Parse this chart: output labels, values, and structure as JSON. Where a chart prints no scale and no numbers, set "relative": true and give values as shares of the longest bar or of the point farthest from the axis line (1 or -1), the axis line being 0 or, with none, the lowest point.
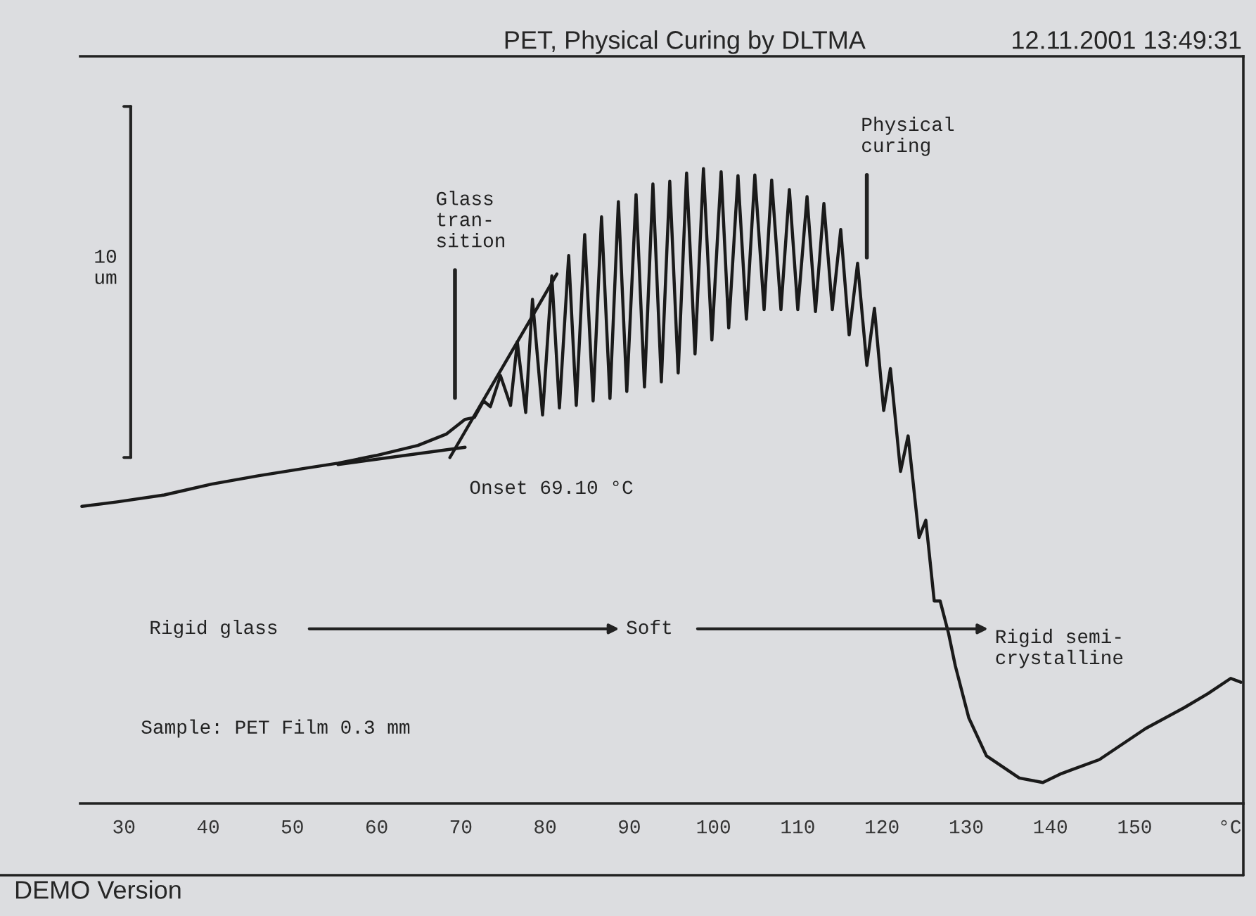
{
  "chart_data": {
    "type": "line",
    "title": "PET, Physical Curing by DLTMA",
    "relative": true,
    "xlim": [
      24.8,
      162.9
    ],
    "xticks": [
      30,
      40,
      50,
      60,
      70,
      80,
      90,
      100,
      110,
      120,
      130,
      140,
      150,
      {
        "value": 161.3,
        "label": "°C"
      }
    ],
    "grid": false,
    "legend": false,
    "marker": "none",
    "line_style": "solid",
    "series": [
      {
        "color": "#1a1a1a",
        "x": [
          25.0,
          29.2,
          34.8,
          40.4,
          45.9,
          51.5,
          55.4,
          59.9,
          64.9,
          68.3,
          70.5,
          71.6,
          72.7,
          73.5,
          74.7,
          75.9,
          76.7,
          77.7,
          78.5,
          79.7,
          80.8,
          81.7,
          82.8,
          83.7,
          84.7,
          85.7,
          86.7,
          87.7,
          88.7,
          89.7,
          90.8,
          91.8,
          92.8,
          93.8,
          94.8,
          95.8,
          96.8,
          97.8,
          98.8,
          99.8,
          100.9,
          101.8,
          102.9,
          103.9,
          104.9,
          106.0,
          106.9,
          108.0,
          109.0,
          110.0,
          111.1,
          112.1,
          113.1,
          114.1,
          115.1,
          116.1,
          117.1,
          118.2,
          119.1,
          120.2,
          121.0,
          122.2,
          123.1,
          124.4,
          125.2,
          126.2,
          126.9,
          127.9,
          128.7,
          130.3,
          132.4,
          136.3,
          139.1,
          141.3,
          145.8,
          151.3,
          155.9,
          158.7,
          161.4,
          162.6
        ],
        "values": [
          0.468,
          0.475,
          0.486,
          0.503,
          0.516,
          0.528,
          0.536,
          0.548,
          0.564,
          0.582,
          0.605,
          0.608,
          0.634,
          0.625,
          0.674,
          0.627,
          0.727,
          0.616,
          0.794,
          0.612,
          0.831,
          0.623,
          0.863,
          0.627,
          0.896,
          0.634,
          0.924,
          0.638,
          0.948,
          0.649,
          0.959,
          0.656,
          0.976,
          0.664,
          0.98,
          0.678,
          0.993,
          0.708,
          1.0,
          0.73,
          0.995,
          0.749,
          0.989,
          0.763,
          0.99,
          0.778,
          0.982,
          0.778,
          0.967,
          0.778,
          0.956,
          0.775,
          0.945,
          0.778,
          0.904,
          0.738,
          0.851,
          0.69,
          0.78,
          0.619,
          0.685,
          0.523,
          0.579,
          0.419,
          0.446,
          0.319,
          0.319,
          0.268,
          0.217,
          0.135,
          0.075,
          0.04,
          0.033,
          0.047,
          0.069,
          0.118,
          0.151,
          0.173,
          0.197,
          0.191
        ]
      },
      {
        "type": "line",
        "color": "#1a1a1a",
        "x": [
          55.4,
          70.5
        ],
        "values": [
          0.534,
          0.561
        ]
      },
      {
        "type": "line",
        "color": "#1a1a1a",
        "x": [
          68.7,
          81.4
        ],
        "values": [
          0.545,
          0.834
        ]
      }
    ],
    "annotations": [
      "12.11.2001 13:49:31",
      "10\num",
      "Glass\ntran-\nsition",
      "Physical\ncuring",
      "Onset 69.10 °C",
      "Rigid glass",
      "Soft",
      "Rigid semi-\ncrystalline",
      "Sample: PET Film 0.3 mm",
      "DEMO Version"
    ]
  }
}
